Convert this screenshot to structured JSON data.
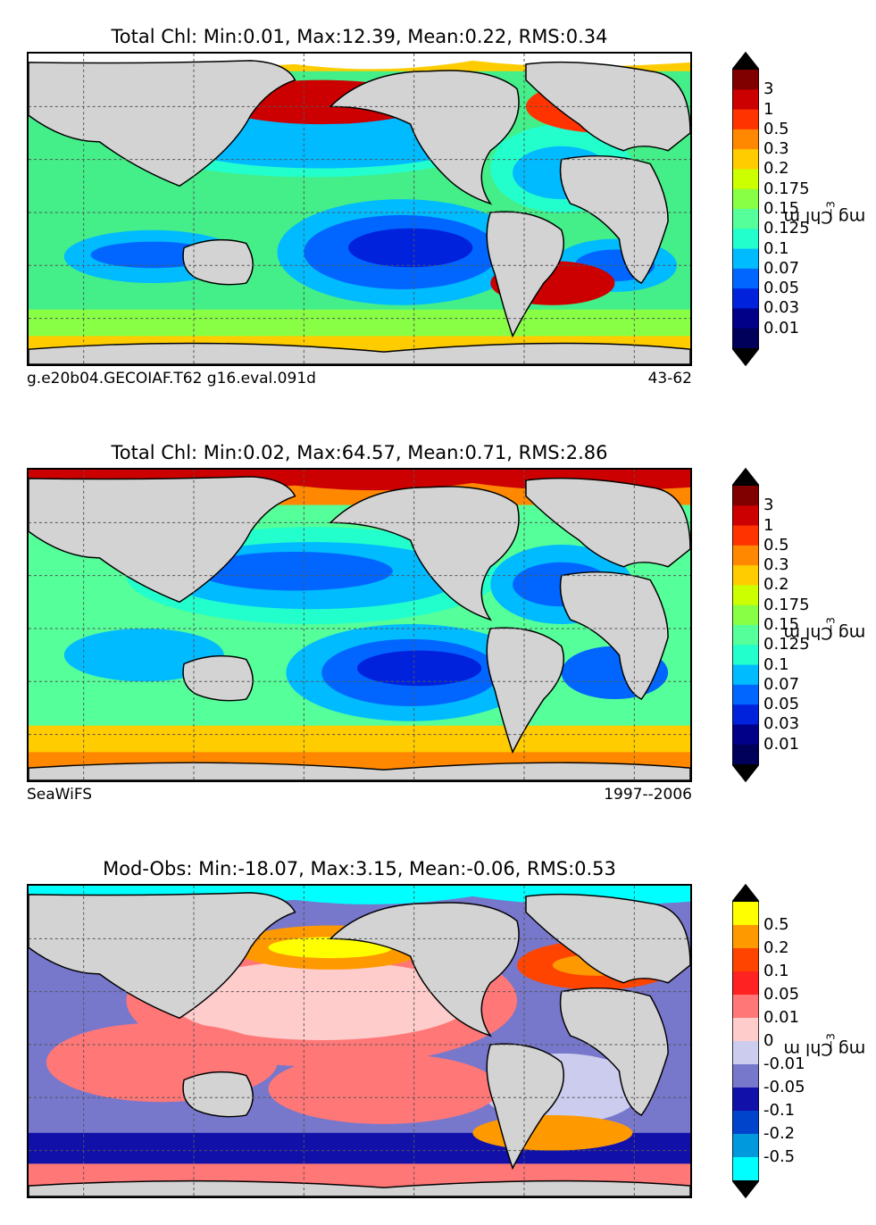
{
  "panels": [
    {
      "id": "model",
      "title": "Total Chl: Min:0.01, Max:12.39, Mean:0.22, RMS:0.34",
      "caption_left": "g.e20b04.GECOIAF.T62 g16.eval.091d",
      "caption_right": "43-62",
      "colorbar": {
        "unit": "mg Chl m",
        "unit_exp": "−3",
        "ticks": [
          "3",
          "1",
          "0.5",
          "0.3",
          "0.2",
          "0.175",
          "0.15",
          "0.125",
          "0.1",
          "0.07",
          "0.05",
          "0.03",
          "0.01"
        ],
        "colors": [
          "#800000",
          "#cc0000",
          "#ff3300",
          "#ff8800",
          "#ffcc00",
          "#ccff00",
          "#88ff44",
          "#55ff99",
          "#22ffcc",
          "#00bbff",
          "#0066ff",
          "#0022dd",
          "#000088",
          "#00005a"
        ]
      }
    },
    {
      "id": "obs",
      "title": "Total Chl: Min:0.02, Max:64.57, Mean:0.71, RMS:2.86",
      "caption_left": "SeaWiFS",
      "caption_right": "1997--2006",
      "colorbar": {
        "unit": "mg Chl m",
        "unit_exp": "−3",
        "ticks": [
          "3",
          "1",
          "0.5",
          "0.3",
          "0.2",
          "0.175",
          "0.15",
          "0.125",
          "0.1",
          "0.07",
          "0.05",
          "0.03",
          "0.01"
        ],
        "colors": [
          "#800000",
          "#cc0000",
          "#ff3300",
          "#ff8800",
          "#ffcc00",
          "#ccff00",
          "#88ff44",
          "#55ff99",
          "#22ffcc",
          "#00bbff",
          "#0066ff",
          "#0022dd",
          "#000088",
          "#00005a"
        ]
      }
    },
    {
      "id": "diff",
      "title": "Mod-Obs: Min:-18.07, Max:3.15, Mean:-0.06, RMS:0.53",
      "caption_left": "",
      "caption_right": "",
      "colorbar": {
        "unit": "mg Chl m",
        "unit_exp": "−3",
        "ticks": [
          "0.5",
          "0.2",
          "0.1",
          "0.05",
          "0.01",
          "0",
          "-0.01",
          "-0.05",
          "-0.1",
          "-0.2",
          "-0.5"
        ],
        "colors": [
          "#ffff00",
          "#ff9900",
          "#ff4400",
          "#ff2222",
          "#ff7777",
          "#ffcccc",
          "#ccccee",
          "#7777cc",
          "#1111aa",
          "#0044cc",
          "#0099dd",
          "#00ffff"
        ]
      }
    }
  ],
  "colors": {
    "land": "#d3d3d3",
    "coast": "#000000",
    "grid": "#555555"
  }
}
